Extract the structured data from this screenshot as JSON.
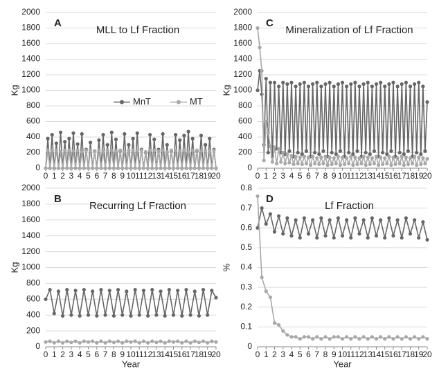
{
  "chart_data": [
    {
      "type": "line",
      "label": "A",
      "title": "MLL to Lf Fraction",
      "y_label": "Kg",
      "grid": true,
      "legend": "center",
      "xlim": [
        0,
        20
      ],
      "xticks": [
        0,
        1,
        2,
        3,
        4,
        5,
        6,
        7,
        8,
        9,
        10,
        11,
        12,
        13,
        14,
        15,
        16,
        17,
        18,
        19,
        20
      ],
      "ylim": [
        0,
        2000
      ],
      "yticks": [
        0,
        200,
        400,
        600,
        800,
        1000,
        1200,
        1400,
        1600,
        1800,
        2000
      ],
      "x": [
        0,
        0.25,
        0.5,
        0.75,
        1,
        1.25,
        1.5,
        1.75,
        2,
        2.25,
        2.5,
        2.75,
        3,
        3.25,
        3.5,
        3.75,
        4,
        4.25,
        4.5,
        4.75,
        5,
        5.25,
        5.5,
        5.75,
        6,
        6.25,
        6.5,
        6.75,
        7,
        7.25,
        7.5,
        7.75,
        8,
        8.25,
        8.5,
        8.75,
        9,
        9.25,
        9.5,
        9.75,
        10,
        10.25,
        10.5,
        10.75,
        11,
        11.25,
        11.5,
        11.75,
        12,
        12.25,
        12.5,
        12.75,
        13,
        13.25,
        13.5,
        13.75,
        14,
        14.25,
        14.5,
        14.75,
        15,
        15.25,
        15.5,
        15.75,
        16,
        16.25,
        16.5,
        16.75,
        17,
        17.25,
        17.5,
        17.75,
        18,
        18.25,
        18.5,
        18.75,
        19,
        19.25,
        19.5,
        19.75,
        20
      ],
      "series": [
        {
          "name": "MnT",
          "color": "#666666",
          "values": [
            0,
            380,
            0,
            430,
            0,
            320,
            0,
            460,
            0,
            340,
            0,
            380,
            0,
            450,
            0,
            310,
            0,
            440,
            0,
            240,
            0,
            330,
            0,
            220,
            0,
            360,
            0,
            430,
            0,
            300,
            0,
            460,
            0,
            370,
            0,
            220,
            0,
            440,
            0,
            300,
            0,
            380,
            0,
            450,
            0,
            240,
            0,
            200,
            0,
            430,
            0,
            370,
            0,
            240,
            0,
            440,
            0,
            300,
            0,
            220,
            0,
            430,
            0,
            360,
            0,
            420,
            0,
            470,
            0,
            380,
            0,
            220,
            0,
            420,
            0,
            300,
            0,
            380,
            0,
            240,
            0
          ]
        },
        {
          "name": "MT",
          "color": "#a8a8a8",
          "values": [
            0,
            230,
            0,
            220,
            0,
            230,
            0,
            210,
            0,
            230,
            0,
            230,
            0,
            220,
            0,
            230,
            0,
            210,
            0,
            230,
            0,
            230,
            0,
            220,
            0,
            230,
            0,
            210,
            0,
            230,
            0,
            230,
            0,
            220,
            0,
            230,
            0,
            210,
            0,
            230,
            0,
            230,
            0,
            220,
            0,
            230,
            0,
            210,
            0,
            230,
            0,
            230,
            0,
            220,
            0,
            230,
            0,
            210,
            0,
            230,
            0,
            230,
            0,
            220,
            0,
            230,
            0,
            210,
            0,
            230,
            0,
            230,
            0,
            220,
            0,
            230,
            0,
            210,
            0,
            230,
            0
          ]
        }
      ]
    },
    {
      "type": "line",
      "label": "B",
      "title": "Recurring Lf Fraction",
      "y_label": "Kg",
      "x_label": "Year",
      "grid": true,
      "xlim": [
        0,
        20
      ],
      "xticks": [
        0,
        1,
        2,
        3,
        4,
        5,
        6,
        7,
        8,
        9,
        10,
        11,
        12,
        13,
        14,
        15,
        16,
        17,
        18,
        19,
        20
      ],
      "ylim": [
        0,
        2000
      ],
      "yticks": [
        0,
        200,
        400,
        600,
        800,
        1000,
        1200,
        1400,
        1600,
        1800,
        2000
      ],
      "x": [
        0,
        0.5,
        1,
        1.5,
        2,
        2.5,
        3,
        3.5,
        4,
        4.5,
        5,
        5.5,
        6,
        6.5,
        7,
        7.5,
        8,
        8.5,
        9,
        9.5,
        10,
        10.5,
        11,
        11.5,
        12,
        12.5,
        13,
        13.5,
        14,
        14.5,
        15,
        15.5,
        16,
        16.5,
        17,
        17.5,
        18,
        18.5,
        19,
        19.5,
        20
      ],
      "series": [
        {
          "name": "MnT",
          "color": "#666666",
          "values": [
            600,
            720,
            420,
            700,
            390,
            720,
            400,
            710,
            390,
            720,
            400,
            700,
            390,
            720,
            400,
            710,
            390,
            720,
            400,
            700,
            390,
            720,
            400,
            710,
            390,
            720,
            400,
            700,
            390,
            720,
            400,
            710,
            390,
            720,
            400,
            700,
            390,
            720,
            400,
            710,
            620
          ]
        },
        {
          "name": "MT",
          "color": "#a8a8a8",
          "values": [
            60,
            70,
            50,
            70,
            50,
            70,
            55,
            70,
            50,
            70,
            60,
            70,
            50,
            70,
            50,
            70,
            55,
            70,
            50,
            70,
            60,
            70,
            50,
            70,
            50,
            70,
            55,
            70,
            50,
            70,
            60,
            70,
            50,
            70,
            50,
            70,
            55,
            70,
            50,
            70,
            60
          ]
        }
      ]
    },
    {
      "type": "line",
      "label": "C",
      "title": "Mineralization of Lf Fraction",
      "y_label": "Kg",
      "grid": true,
      "xlim": [
        0,
        20
      ],
      "xticks": [
        0,
        1,
        2,
        3,
        4,
        5,
        6,
        7,
        8,
        9,
        10,
        11,
        12,
        13,
        14,
        15,
        16,
        17,
        18,
        19,
        20
      ],
      "ylim": [
        0,
        2000
      ],
      "yticks": [
        0,
        200,
        400,
        600,
        800,
        1000,
        1200,
        1400,
        1600,
        1800,
        2000
      ],
      "x": [
        0,
        0.25,
        0.5,
        0.75,
        1,
        1.25,
        1.5,
        1.75,
        2,
        2.25,
        2.5,
        2.75,
        3,
        3.25,
        3.5,
        3.75,
        4,
        4.25,
        4.5,
        4.75,
        5,
        5.25,
        5.5,
        5.75,
        6,
        6.25,
        6.5,
        6.75,
        7,
        7.25,
        7.5,
        7.75,
        8,
        8.25,
        8.5,
        8.75,
        9,
        9.25,
        9.5,
        9.75,
        10,
        10.25,
        10.5,
        10.75,
        11,
        11.25,
        11.5,
        11.75,
        12,
        12.25,
        12.5,
        12.75,
        13,
        13.25,
        13.5,
        13.75,
        14,
        14.25,
        14.5,
        14.75,
        15,
        15.25,
        15.5,
        15.75,
        16,
        16.25,
        16.5,
        16.75,
        17,
        17.25,
        17.5,
        17.75,
        18,
        18.25,
        18.5,
        18.75,
        19,
        19.25,
        19.5,
        19.75,
        20
      ],
      "series": [
        {
          "name": "MnT",
          "color": "#666666",
          "values": [
            1000,
            1250,
            950,
            300,
            1150,
            200,
            1100,
            150,
            1100,
            250,
            1050,
            200,
            1100,
            180,
            1080,
            220,
            1100,
            150,
            1050,
            200,
            1080,
            180,
            1100,
            220,
            1050,
            150,
            1080,
            200,
            1100,
            180,
            1050,
            220,
            1080,
            150,
            1100,
            200,
            1050,
            180,
            1080,
            220,
            1100,
            150,
            1050,
            200,
            1080,
            180,
            1100,
            220,
            1050,
            150,
            1080,
            200,
            1100,
            180,
            1050,
            220,
            1080,
            150,
            1100,
            200,
            1050,
            180,
            1080,
            220,
            1100,
            150,
            1050,
            200,
            1080,
            180,
            1100,
            220,
            1050,
            150,
            1080,
            200,
            1100,
            180,
            1050,
            220,
            850
          ]
        },
        {
          "name": "MT",
          "color": "#a8a8a8",
          "values": [
            1800,
            1550,
            1250,
            100,
            600,
            450,
            280,
            80,
            270,
            60,
            250,
            80,
            200,
            60,
            180,
            70,
            160,
            50,
            150,
            60,
            140,
            50,
            150,
            60,
            140,
            40,
            150,
            60,
            130,
            50,
            140,
            60,
            150,
            40,
            140,
            50,
            130,
            60,
            150,
            40,
            140,
            50,
            130,
            60,
            150,
            40,
            140,
            50,
            130,
            60,
            150,
            40,
            140,
            50,
            130,
            60,
            150,
            40,
            140,
            50,
            130,
            60,
            150,
            40,
            140,
            50,
            130,
            60,
            150,
            40,
            140,
            50,
            130,
            60,
            150,
            40,
            140,
            50,
            130,
            60,
            120
          ]
        }
      ]
    },
    {
      "type": "line",
      "label": "D",
      "title": "Lf Fraction",
      "y_label": "%",
      "x_label": "Year",
      "grid": true,
      "xlim": [
        0,
        20
      ],
      "xticks": [
        0,
        1,
        2,
        3,
        4,
        5,
        6,
        7,
        8,
        9,
        10,
        11,
        12,
        13,
        14,
        15,
        16,
        17,
        18,
        19,
        20
      ],
      "ylim": [
        0,
        0.8
      ],
      "yticks": [
        0,
        0.1,
        0.2,
        0.3,
        0.4,
        0.5,
        0.6,
        0.7,
        0.8
      ],
      "x": [
        0,
        0.5,
        1,
        1.5,
        2,
        2.5,
        3,
        3.5,
        4,
        4.5,
        5,
        5.5,
        6,
        6.5,
        7,
        7.5,
        8,
        8.5,
        9,
        9.5,
        10,
        10.5,
        11,
        11.5,
        12,
        12.5,
        13,
        13.5,
        14,
        14.5,
        15,
        15.5,
        16,
        16.5,
        17,
        17.5,
        18,
        18.5,
        19,
        19.5,
        20
      ],
      "series": [
        {
          "name": "MnT",
          "color": "#666666",
          "values": [
            0.6,
            0.7,
            0.62,
            0.67,
            0.58,
            0.66,
            0.57,
            0.65,
            0.56,
            0.64,
            0.55,
            0.65,
            0.57,
            0.64,
            0.55,
            0.65,
            0.56,
            0.64,
            0.55,
            0.65,
            0.56,
            0.64,
            0.55,
            0.65,
            0.57,
            0.64,
            0.55,
            0.65,
            0.56,
            0.64,
            0.55,
            0.65,
            0.56,
            0.64,
            0.55,
            0.65,
            0.57,
            0.64,
            0.55,
            0.63,
            0.54
          ]
        },
        {
          "name": "MT",
          "color": "#a8a8a8",
          "values": [
            0.76,
            0.35,
            0.28,
            0.25,
            0.12,
            0.11,
            0.08,
            0.06,
            0.05,
            0.05,
            0.04,
            0.05,
            0.05,
            0.04,
            0.05,
            0.04,
            0.05,
            0.04,
            0.05,
            0.05,
            0.04,
            0.05,
            0.04,
            0.05,
            0.04,
            0.05,
            0.04,
            0.05,
            0.04,
            0.05,
            0.04,
            0.05,
            0.04,
            0.05,
            0.04,
            0.05,
            0.04,
            0.05,
            0.04,
            0.05,
            0.04
          ]
        }
      ]
    }
  ]
}
